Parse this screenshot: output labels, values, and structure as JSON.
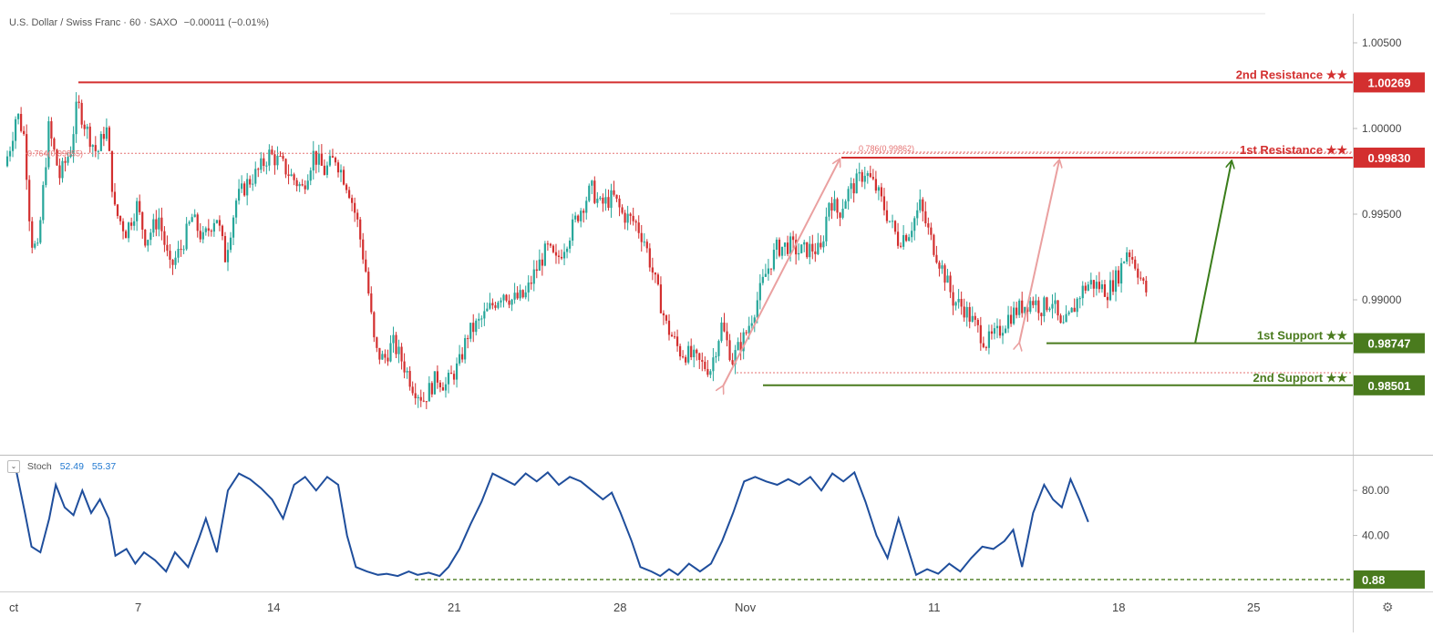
{
  "header": {
    "symbol": "U.S. Dollar / Swiss Franc · 60 · SAXO",
    "change": "−0.00011 (−0.01%)"
  },
  "stoch_header": {
    "toggle": "⌄",
    "name": "Stoch",
    "k": "52.49",
    "d": "55.37"
  },
  "settings_icon": "⚙",
  "colors": {
    "up": "#26a69a",
    "down": "#d32f2f",
    "resistance": "#d32f2f",
    "support": "#4a7b1e",
    "stoch": "#1f4e9c",
    "fib": "#e57373"
  },
  "chart_data": [
    {
      "type": "candlestick",
      "x_tick_labels": [
        "ct",
        "7",
        "14",
        "21",
        "28",
        "Nov",
        "11",
        "18",
        "25"
      ],
      "y_tick_labels": [
        "1.00500",
        "1.00000",
        "0.99500",
        "0.99000"
      ],
      "ylim": [
        0.98,
        1.0065
      ],
      "close_path": [
        [
          0,
          0.9978
        ],
        [
          0.3,
          0.9992
        ],
        [
          0.55,
          1.001
        ],
        [
          0.9,
          0.9995
        ],
        [
          1.2,
          0.9935
        ],
        [
          1.5,
          0.9928
        ],
        [
          2.0,
          1.0
        ],
        [
          2.5,
          0.9972
        ],
        [
          3.0,
          0.9988
        ],
        [
          3.3,
          1.0015
        ],
        [
          3.7,
          1.0
        ],
        [
          4.2,
          0.9985
        ],
        [
          4.6,
          1.0002
        ],
        [
          5.0,
          0.9952
        ],
        [
          5.5,
          0.994
        ],
        [
          6.0,
          0.9955
        ],
        [
          6.4,
          0.9935
        ],
        [
          7.0,
          0.9948
        ],
        [
          7.5,
          0.9918
        ],
        [
          8.0,
          0.993
        ],
        [
          8.5,
          0.9948
        ],
        [
          9.0,
          0.9935
        ],
        [
          9.6,
          0.995
        ],
        [
          10.0,
          0.9925
        ],
        [
          10.5,
          0.9958
        ],
        [
          11.0,
          0.9968
        ],
        [
          11.5,
          0.9975
        ],
        [
          12.0,
          0.9985
        ],
        [
          12.5,
          0.998
        ],
        [
          13.0,
          0.9972
        ],
        [
          13.5,
          0.9965
        ],
        [
          14.0,
          0.9985
        ],
        [
          14.5,
          0.9975
        ],
        [
          15.0,
          0.9983
        ],
        [
          15.6,
          0.9965
        ],
        [
          16.0,
          0.9945
        ],
        [
          16.4,
          0.9915
        ],
        [
          16.8,
          0.987
        ],
        [
          17.2,
          0.9865
        ],
        [
          17.6,
          0.9875
        ],
        [
          18.0,
          0.9865
        ],
        [
          18.5,
          0.985
        ],
        [
          19.0,
          0.9842
        ],
        [
          19.6,
          0.9855
        ],
        [
          20.0,
          0.985
        ],
        [
          20.6,
          0.9862
        ],
        [
          21.0,
          0.988
        ],
        [
          21.6,
          0.9888
        ],
        [
          22.0,
          0.9895
        ],
        [
          22.6,
          0.9905
        ],
        [
          23.0,
          0.99
        ],
        [
          23.6,
          0.9902
        ],
        [
          24.0,
          0.9915
        ],
        [
          24.6,
          0.993
        ],
        [
          25.0,
          0.9922
        ],
        [
          25.6,
          0.9938
        ],
        [
          26.0,
          0.995
        ],
        [
          26.6,
          0.9965
        ],
        [
          27.0,
          0.9955
        ],
        [
          27.6,
          0.996
        ],
        [
          28.0,
          0.995
        ],
        [
          28.6,
          0.9945
        ],
        [
          29.0,
          0.9935
        ],
        [
          29.6,
          0.9905
        ],
        [
          30.0,
          0.9885
        ],
        [
          30.6,
          0.987
        ],
        [
          31.0,
          0.9868
        ],
        [
          31.6,
          0.9862
        ],
        [
          32.0,
          0.986
        ],
        [
          32.5,
          0.9885
        ],
        [
          33.0,
          0.9865
        ],
        [
          33.6,
          0.988
        ],
        [
          34.0,
          0.9895
        ],
        [
          34.5,
          0.9915
        ],
        [
          35.0,
          0.993
        ],
        [
          35.6,
          0.9932
        ],
        [
          36.0,
          0.9928
        ],
        [
          36.6,
          0.993
        ],
        [
          37.0,
          0.9928
        ],
        [
          37.4,
          0.996
        ],
        [
          37.8,
          0.995
        ],
        [
          38.2,
          0.9962
        ],
        [
          38.6,
          0.9968
        ],
        [
          39.0,
          0.9975
        ],
        [
          39.5,
          0.9965
        ],
        [
          40.0,
          0.995
        ],
        [
          40.5,
          0.9935
        ],
        [
          41.0,
          0.994
        ],
        [
          41.5,
          0.9955
        ],
        [
          42.0,
          0.9935
        ],
        [
          42.6,
          0.9915
        ],
        [
          43.0,
          0.99
        ],
        [
          43.5,
          0.9895
        ],
        [
          44.0,
          0.9885
        ],
        [
          44.5,
          0.9875
        ],
        [
          45.0,
          0.988
        ],
        [
          45.5,
          0.989
        ],
        [
          46.0,
          0.9895
        ],
        [
          46.6,
          0.99
        ],
        [
          47.0,
          0.9895
        ],
        [
          47.5,
          0.99
        ],
        [
          47.9,
          0.9882
        ],
        [
          48.3,
          0.989
        ],
        [
          48.8,
          0.9905
        ],
        [
          49.2,
          0.991
        ],
        [
          49.6,
          0.9908
        ],
        [
          50.0,
          0.9905
        ],
        [
          50.5,
          0.9915
        ],
        [
          50.9,
          0.993
        ],
        [
          51.3,
          0.992
        ],
        [
          51.7,
          0.9905
        ]
      ],
      "levels": [
        {
          "label": "2nd Resistance ★★",
          "value": "1.00269",
          "price": 1.00269,
          "style": "resistance"
        },
        {
          "label": "1st Resistance ★★",
          "value": "0.99830",
          "price": 0.9983,
          "style": "resistance"
        },
        {
          "label": "1st Support ★★",
          "value": "0.98747",
          "price": 0.98747,
          "style": "support"
        },
        {
          "label": "2nd Support ★★",
          "value": "0.98501",
          "price": 0.98501,
          "style": "support"
        }
      ],
      "fib_labels": [
        {
          "text": "0.764(0.99855)",
          "price": 0.99855
        },
        {
          "text": "0.786(0.99862)",
          "price": 0.99862
        }
      ]
    },
    {
      "type": "line",
      "name": "Stoch",
      "y_tick_labels": [
        "80.00",
        "40.00"
      ],
      "ylim": [
        0,
        110
      ],
      "level": {
        "value": "0.88",
        "y": 0.88
      },
      "path": [
        [
          0,
          98
        ],
        [
          0.4,
          98
        ],
        [
          0.8,
          60
        ],
        [
          1.1,
          30
        ],
        [
          1.5,
          25
        ],
        [
          1.9,
          55
        ],
        [
          2.2,
          85
        ],
        [
          2.6,
          65
        ],
        [
          3.0,
          58
        ],
        [
          3.4,
          80
        ],
        [
          3.8,
          60
        ],
        [
          4.2,
          72
        ],
        [
          4.6,
          55
        ],
        [
          4.9,
          22
        ],
        [
          5.4,
          28
        ],
        [
          5.8,
          15
        ],
        [
          6.2,
          25
        ],
        [
          6.7,
          18
        ],
        [
          7.2,
          8
        ],
        [
          7.6,
          25
        ],
        [
          8.2,
          12
        ],
        [
          8.7,
          38
        ],
        [
          9.0,
          55
        ],
        [
          9.5,
          25
        ],
        [
          10.0,
          80
        ],
        [
          10.5,
          95
        ],
        [
          11.0,
          90
        ],
        [
          11.5,
          82
        ],
        [
          12.0,
          72
        ],
        [
          12.5,
          55
        ],
        [
          13.0,
          85
        ],
        [
          13.5,
          92
        ],
        [
          14.0,
          80
        ],
        [
          14.5,
          92
        ],
        [
          15.0,
          85
        ],
        [
          15.4,
          40
        ],
        [
          15.8,
          12
        ],
        [
          16.3,
          8
        ],
        [
          16.8,
          5
        ],
        [
          17.2,
          6
        ],
        [
          17.7,
          4
        ],
        [
          18.2,
          8
        ],
        [
          18.6,
          5
        ],
        [
          19.1,
          7
        ],
        [
          19.6,
          4
        ],
        [
          20.0,
          12
        ],
        [
          20.5,
          28
        ],
        [
          21.0,
          50
        ],
        [
          21.5,
          70
        ],
        [
          22.0,
          95
        ],
        [
          22.5,
          90
        ],
        [
          23.0,
          85
        ],
        [
          23.5,
          95
        ],
        [
          24.0,
          88
        ],
        [
          24.5,
          96
        ],
        [
          25.0,
          85
        ],
        [
          25.5,
          92
        ],
        [
          26.0,
          88
        ],
        [
          26.5,
          80
        ],
        [
          27.0,
          72
        ],
        [
          27.4,
          78
        ],
        [
          27.8,
          60
        ],
        [
          28.3,
          35
        ],
        [
          28.7,
          12
        ],
        [
          29.2,
          8
        ],
        [
          29.6,
          4
        ],
        [
          30.0,
          10
        ],
        [
          30.4,
          5
        ],
        [
          30.9,
          15
        ],
        [
          31.4,
          8
        ],
        [
          31.9,
          15
        ],
        [
          32.4,
          35
        ],
        [
          32.9,
          60
        ],
        [
          33.4,
          88
        ],
        [
          33.9,
          92
        ],
        [
          34.4,
          88
        ],
        [
          34.9,
          85
        ],
        [
          35.4,
          90
        ],
        [
          35.9,
          85
        ],
        [
          36.4,
          92
        ],
        [
          36.9,
          80
        ],
        [
          37.4,
          95
        ],
        [
          37.9,
          88
        ],
        [
          38.4,
          96
        ],
        [
          38.9,
          70
        ],
        [
          39.4,
          40
        ],
        [
          39.9,
          20
        ],
        [
          40.4,
          55
        ],
        [
          40.8,
          30
        ],
        [
          41.2,
          5
        ],
        [
          41.7,
          10
        ],
        [
          42.2,
          6
        ],
        [
          42.7,
          15
        ],
        [
          43.2,
          8
        ],
        [
          43.7,
          20
        ],
        [
          44.2,
          30
        ],
        [
          44.7,
          28
        ],
        [
          45.2,
          35
        ],
        [
          45.6,
          45
        ],
        [
          46.0,
          12
        ],
        [
          46.5,
          60
        ],
        [
          47.0,
          85
        ],
        [
          47.4,
          72
        ],
        [
          47.8,
          65
        ],
        [
          48.2,
          90
        ],
        [
          48.6,
          72
        ],
        [
          49.0,
          52
        ]
      ]
    }
  ]
}
